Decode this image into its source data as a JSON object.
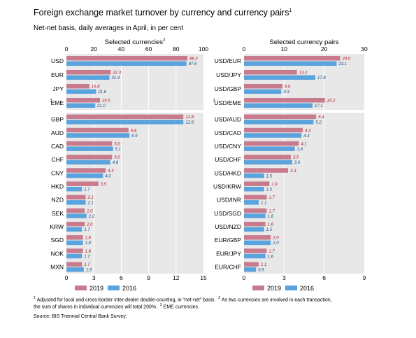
{
  "title": "Foreign exchange market turnover by currency and currency pairs",
  "title_footnote": "1",
  "subtitle": "Net-net basis, daily averages in April, in per cent",
  "colors": {
    "2019": "#c97b8e",
    "2016": "#5ba3dd",
    "panel_bg": "#e8e8e8",
    "grid": "#ffffff",
    "label_2019": "#b2182b",
    "label_2016": "#1a4f8a"
  },
  "chart_data": [
    {
      "type": "bar",
      "orientation": "horizontal",
      "title": "Selected currencies",
      "title_footnote": "2",
      "xlim_top": [
        0,
        100
      ],
      "xticks_top": [
        0,
        20,
        40,
        60,
        80,
        100
      ],
      "xlim_bottom": [
        0,
        15
      ],
      "xticks_bottom": [
        0,
        3,
        6,
        9,
        12,
        15
      ],
      "grid": true,
      "legend": "bottom",
      "series_names": [
        "2019",
        "2016"
      ],
      "top_group": {
        "categories": [
          "USD",
          "EUR",
          "JPY",
          "EME"
        ],
        "category_footnotes": [
          "",
          "",
          "",
          "3"
        ],
        "series": [
          {
            "name": "2019",
            "values": [
              88.3,
              32.3,
              16.8,
              24.5
            ]
          },
          {
            "name": "2016",
            "values": [
              87.6,
              31.4,
              21.6,
              21.0
            ]
          }
        ],
        "labels": [
          [
            "88.3",
            "32.3",
            "16.8",
            "24.5"
          ],
          [
            "87.6",
            "31.4",
            "21.6",
            "21.0"
          ]
        ]
      },
      "bottom_group": {
        "categories": [
          "GBP",
          "AUD",
          "CAD",
          "CHF",
          "CNY",
          "HKD",
          "NZD",
          "SEK",
          "KRW",
          "SGD",
          "NOK",
          "MXN"
        ],
        "series": [
          {
            "name": "2019",
            "values": [
              12.8,
              6.8,
              5.0,
              5.0,
              4.3,
              3.5,
              2.1,
              2.0,
              2.0,
              1.8,
              1.8,
              1.7
            ]
          },
          {
            "name": "2016",
            "values": [
              12.8,
              6.9,
              5.1,
              4.8,
              4.0,
              1.7,
              2.1,
              2.2,
              1.7,
              1.8,
              1.7,
              1.9
            ]
          }
        ],
        "labels": [
          [
            "12.8",
            "6.8",
            "5.0",
            "5.0",
            "4.3",
            "3.5",
            "2.1",
            "2.0",
            "2.0",
            "1.8",
            "1.8",
            "1.7"
          ],
          [
            "12.8",
            "6.9",
            "5.1",
            "4.8",
            "4.0",
            "1.7",
            "2.1",
            "2.2",
            "1.7",
            "1.8",
            "1.7",
            "1.9"
          ]
        ]
      }
    },
    {
      "type": "bar",
      "orientation": "horizontal",
      "title": "Selected currency pairs",
      "xlim_top": [
        0,
        30
      ],
      "xticks_top": [
        0,
        10,
        20,
        30
      ],
      "xlim_bottom": [
        0,
        9
      ],
      "xticks_bottom": [
        0,
        3,
        6,
        9
      ],
      "grid": true,
      "legend": "bottom",
      "series_names": [
        "2019",
        "2016"
      ],
      "top_group": {
        "categories": [
          "USD/EUR",
          "USD/JPY",
          "USD/GBP",
          "USD/EME"
        ],
        "category_footnotes": [
          "",
          "",
          "",
          "3"
        ],
        "series": [
          {
            "name": "2019",
            "values": [
              24.0,
              13.2,
              9.6,
              20.2
            ]
          },
          {
            "name": "2016",
            "values": [
              23.1,
              17.8,
              9.3,
              17.1
            ]
          }
        ],
        "labels": [
          [
            "24.0",
            "13.2",
            "9.6",
            "20.2"
          ],
          [
            "23.1",
            "17.8",
            "9.3",
            "17.1"
          ]
        ]
      },
      "bottom_group": {
        "categories": [
          "USD/AUD",
          "USD/CAD",
          "USD/CNY",
          "USD/CHF",
          "USD/HKD",
          "USD/KRW",
          "USD/INR",
          "USD/SGD",
          "USD/NZD",
          "EUR/GBP",
          "EUR/JPY",
          "EUR/CHF"
        ],
        "series": [
          {
            "name": "2019",
            "values": [
              5.4,
              4.4,
              4.1,
              3.5,
              3.3,
              1.9,
              1.7,
              1.7,
              1.6,
              2.0,
              1.7,
              1.1
            ]
          },
          {
            "name": "2016",
            "values": [
              5.2,
              4.3,
              3.8,
              3.6,
              1.5,
              1.5,
              1.1,
              1.6,
              1.5,
              2.0,
              1.6,
              0.9
            ]
          }
        ],
        "labels": [
          [
            "5.4",
            "4.4",
            "4.1",
            "3.5",
            "3.3",
            "1.9",
            "1.7",
            "1.7",
            "1.6",
            "2.0",
            "1.7",
            "1.1"
          ],
          [
            "5.2",
            "4.3",
            "3.8",
            "3.6",
            "1.5",
            "1.5",
            "1.1",
            "1.6",
            "1.5",
            "2.0",
            "1.6",
            "0.9"
          ]
        ]
      }
    }
  ],
  "footnotes": {
    "line1_marker1": "1",
    "line1_text1": "Adjusted for local and cross-border inter-dealer double-counting, ie “net-net” basis.",
    "line1_marker2": "2",
    "line1_text2": "As two currencies are involved in each transaction,",
    "line2_text1": "the sum of shares in individual currencies will total 200%.",
    "line2_marker3": "3",
    "line2_text2": "EME currencies.",
    "source": "Source: BIS Triennial Central Bank Survey."
  }
}
